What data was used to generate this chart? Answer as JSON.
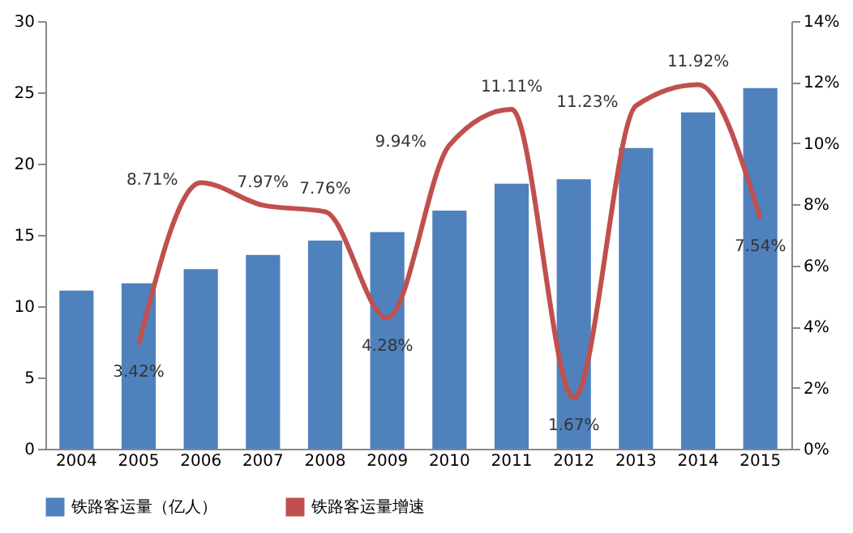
{
  "chart_data": {
    "type": "bar",
    "categories": [
      "2004",
      "2005",
      "2006",
      "2007",
      "2008",
      "2009",
      "2010",
      "2011",
      "2012",
      "2013",
      "2014",
      "2015"
    ],
    "series": [
      {
        "name": "铁路客运量（亿人）",
        "color": "#4f81bd",
        "values": [
          11.1,
          11.6,
          12.6,
          13.6,
          14.6,
          15.2,
          16.7,
          18.6,
          18.9,
          21.1,
          23.6,
          25.3
        ]
      },
      {
        "name": "铁路客运量增速",
        "color": "#c0504d",
        "type": "line",
        "axis": "y2",
        "values": [
          null,
          3.42,
          8.71,
          7.97,
          7.76,
          4.28,
          9.94,
          11.11,
          1.67,
          11.23,
          11.92,
          7.54
        ],
        "value_labels": [
          null,
          "3.42%",
          "8.71%",
          "7.97%",
          "7.76%",
          "4.28%",
          "9.94%",
          "11.11%",
          "1.67%",
          "11.23%",
          "11.92%",
          "7.54%"
        ]
      }
    ],
    "ylim": [
      0,
      30
    ],
    "yticks": [
      0,
      5,
      10,
      15,
      20,
      25,
      30
    ],
    "y2lim": [
      0,
      14
    ],
    "y2ticks": [
      {
        "value": 0,
        "label": "0%"
      },
      {
        "value": 2,
        "label": "2%"
      },
      {
        "value": 4,
        "label": "4%"
      },
      {
        "value": 6,
        "label": "6%"
      },
      {
        "value": 8,
        "label": "8%"
      },
      {
        "value": 10,
        "label": "10%"
      },
      {
        "value": 12,
        "label": "12%"
      },
      {
        "value": 14,
        "label": "14%"
      }
    ],
    "grid": false,
    "legend": "bottom",
    "marker": "none",
    "line_style": "solid"
  }
}
